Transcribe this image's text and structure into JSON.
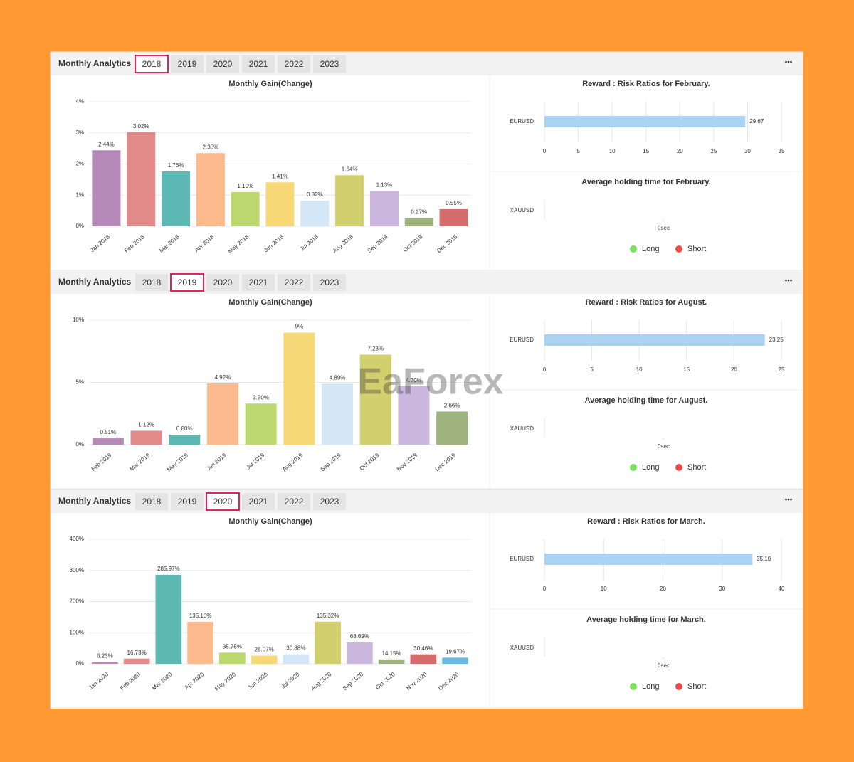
{
  "watermark": "EaForex",
  "panels": [
    {
      "header": "Monthly Analytics",
      "tabs": [
        "2018",
        "2019",
        "2020",
        "2021",
        "2022",
        "2023"
      ],
      "selected": 0,
      "menu": "•••"
    },
    {
      "header": "Monthly Analytics",
      "tabs": [
        "2018",
        "2019",
        "2020",
        "2021",
        "2022",
        "2023"
      ],
      "selected": 1,
      "menu": "•••"
    },
    {
      "header": "Monthly Analytics",
      "tabs": [
        "2018",
        "2019",
        "2020",
        "2021",
        "2022",
        "2023"
      ],
      "selected": 2,
      "menu": "•••"
    }
  ],
  "chart_data": [
    {
      "type": "bar",
      "title": "Monthly Gain(Change)",
      "categories": [
        "Jan 2018",
        "Feb 2018",
        "Mar 2018",
        "Apr 2018",
        "May 2018",
        "Jun 2018",
        "Jul 2018",
        "Aug 2018",
        "Sep 2018",
        "Oct 2018",
        "Dec 2018"
      ],
      "values": [
        2.44,
        3.02,
        1.76,
        2.35,
        1.1,
        1.41,
        0.82,
        1.64,
        1.13,
        0.27,
        0.55
      ],
      "value_labels": [
        "2.44%",
        "3.02%",
        "1.76%",
        "2.35%",
        "1.10%",
        "1.41%",
        "0.82%",
        "1.64%",
        "1.13%",
        "0.27%",
        "0.55%"
      ],
      "colors": [
        "#b58ab8",
        "#e38b8b",
        "#5cb8b2",
        "#fdba8c",
        "#bcd96f",
        "#f7d877",
        "#d3e7f7",
        "#d1cf6e",
        "#cbb6dd",
        "#9fb37f",
        "#d56b6b"
      ],
      "ylim": [
        0,
        4
      ],
      "yticks": [
        {
          "value": 0,
          "label": "0%"
        },
        {
          "value": 1,
          "label": "1%"
        },
        {
          "value": 2,
          "label": "2%"
        },
        {
          "value": 3,
          "label": "3%"
        },
        {
          "value": 4,
          "label": "4%"
        }
      ],
      "grid": true
    },
    {
      "type": "hbar",
      "title": "Reward : Risk Ratios for February.",
      "categories": [
        "EURUSD"
      ],
      "values": [
        29.67
      ],
      "color": "#a9d2f3",
      "xlim": [
        0,
        35
      ],
      "xticks": [
        0,
        5,
        10,
        15,
        20,
        25,
        30,
        35
      ],
      "grid": true
    },
    {
      "type": "hold",
      "title": "Average holding time for February.",
      "categories": [
        "XAUUSD"
      ],
      "series": [
        {
          "name": "Long",
          "color": "#7be35a",
          "values": [
            0
          ]
        },
        {
          "name": "Short",
          "color": "#ee4a4a",
          "values": [
            0
          ]
        }
      ],
      "xlim": [
        -1,
        1
      ],
      "xticks": [
        {
          "value": 0,
          "label": "0sec"
        }
      ]
    },
    {
      "type": "bar",
      "title": "Monthly Gain(Change)",
      "categories": [
        "Feb 2019",
        "Mar 2019",
        "May 2019",
        "Jun 2019",
        "Jul 2019",
        "Aug 2019",
        "Sep 2019",
        "Oct 2019",
        "Nov 2019",
        "Dec 2019"
      ],
      "values": [
        0.51,
        1.12,
        0.8,
        4.92,
        3.3,
        9,
        4.89,
        7.23,
        4.7,
        2.66
      ],
      "value_labels": [
        "0.51%",
        "1.12%",
        "0.80%",
        "4.92%",
        "3.30%",
        "9%",
        "4.89%",
        "7.23%",
        "4.70%",
        "2.66%"
      ],
      "colors": [
        "#b58ab8",
        "#e38b8b",
        "#5cb8b2",
        "#fdba8c",
        "#bcd96f",
        "#f7d877",
        "#d3e7f7",
        "#d1cf6e",
        "#cbb6dd",
        "#9fb37f"
      ],
      "ylim": [
        0,
        10
      ],
      "yticks": [
        {
          "value": 0,
          "label": "0%"
        },
        {
          "value": 5,
          "label": "5%"
        },
        {
          "value": 10,
          "label": "10%"
        }
      ],
      "grid": true
    },
    {
      "type": "hbar",
      "title": "Reward : Risk Ratios for August.",
      "categories": [
        "EURUSD"
      ],
      "values": [
        23.25
      ],
      "color": "#a9d2f3",
      "xlim": [
        0,
        25
      ],
      "xticks": [
        0,
        5,
        10,
        15,
        20,
        25
      ],
      "grid": true
    },
    {
      "type": "hold",
      "title": "Average holding time for August.",
      "categories": [
        "XAUUSD"
      ],
      "series": [
        {
          "name": "Long",
          "color": "#7be35a",
          "values": [
            0
          ]
        },
        {
          "name": "Short",
          "color": "#ee4a4a",
          "values": [
            0
          ]
        }
      ],
      "xlim": [
        -1,
        1
      ],
      "xticks": [
        {
          "value": 0,
          "label": "0sec"
        }
      ]
    },
    {
      "type": "bar",
      "title": "Monthly Gain(Change)",
      "categories": [
        "Jan 2020",
        "Feb 2020",
        "Mar 2020",
        "Apr 2020",
        "May 2020",
        "Jun 2020",
        "Jul 2020",
        "Aug 2020",
        "Sep 2020",
        "Oct 2020",
        "Nov 2020",
        "Dec 2020"
      ],
      "values": [
        6.23,
        16.73,
        285.97,
        135.1,
        35.75,
        26.07,
        30.88,
        135.32,
        68.69,
        14.15,
        30.46,
        19.67
      ],
      "value_labels": [
        "6.23%",
        "16.73%",
        "285.97%",
        "135.10%",
        "35.75%",
        "26.07%",
        "30.88%",
        "135.32%",
        "68.69%",
        "14.15%",
        "30.46%",
        "19.67%"
      ],
      "colors": [
        "#b58ab8",
        "#e38b8b",
        "#5cb8b2",
        "#fdba8c",
        "#bcd96f",
        "#f7d877",
        "#d3e7f7",
        "#d1cf6e",
        "#cbb6dd",
        "#9fb37f",
        "#d56b6b",
        "#6bb9e2"
      ],
      "ylim": [
        0,
        400
      ],
      "yticks": [
        {
          "value": 0,
          "label": "0%"
        },
        {
          "value": 100,
          "label": "100%"
        },
        {
          "value": 200,
          "label": "200%"
        },
        {
          "value": 300,
          "label": "300%"
        },
        {
          "value": 400,
          "label": "400%"
        }
      ],
      "grid": true
    },
    {
      "type": "hbar",
      "title": "Reward : Risk Ratios for March.",
      "categories": [
        "EURUSD"
      ],
      "values": [
        35.1
      ],
      "value_labels": [
        "35.10"
      ],
      "color": "#a9d2f3",
      "xlim": [
        0,
        40
      ],
      "xticks": [
        0,
        10,
        20,
        30,
        40
      ],
      "grid": true
    },
    {
      "type": "hold",
      "title": "Average holding time for March.",
      "categories": [
        "XAUUSD"
      ],
      "series": [
        {
          "name": "Long",
          "color": "#7be35a",
          "values": [
            0
          ]
        },
        {
          "name": "Short",
          "color": "#ee4a4a",
          "values": [
            0
          ]
        }
      ],
      "xlim": [
        -1,
        1
      ],
      "xticks": [
        {
          "value": 0,
          "label": "0sec"
        }
      ]
    }
  ]
}
